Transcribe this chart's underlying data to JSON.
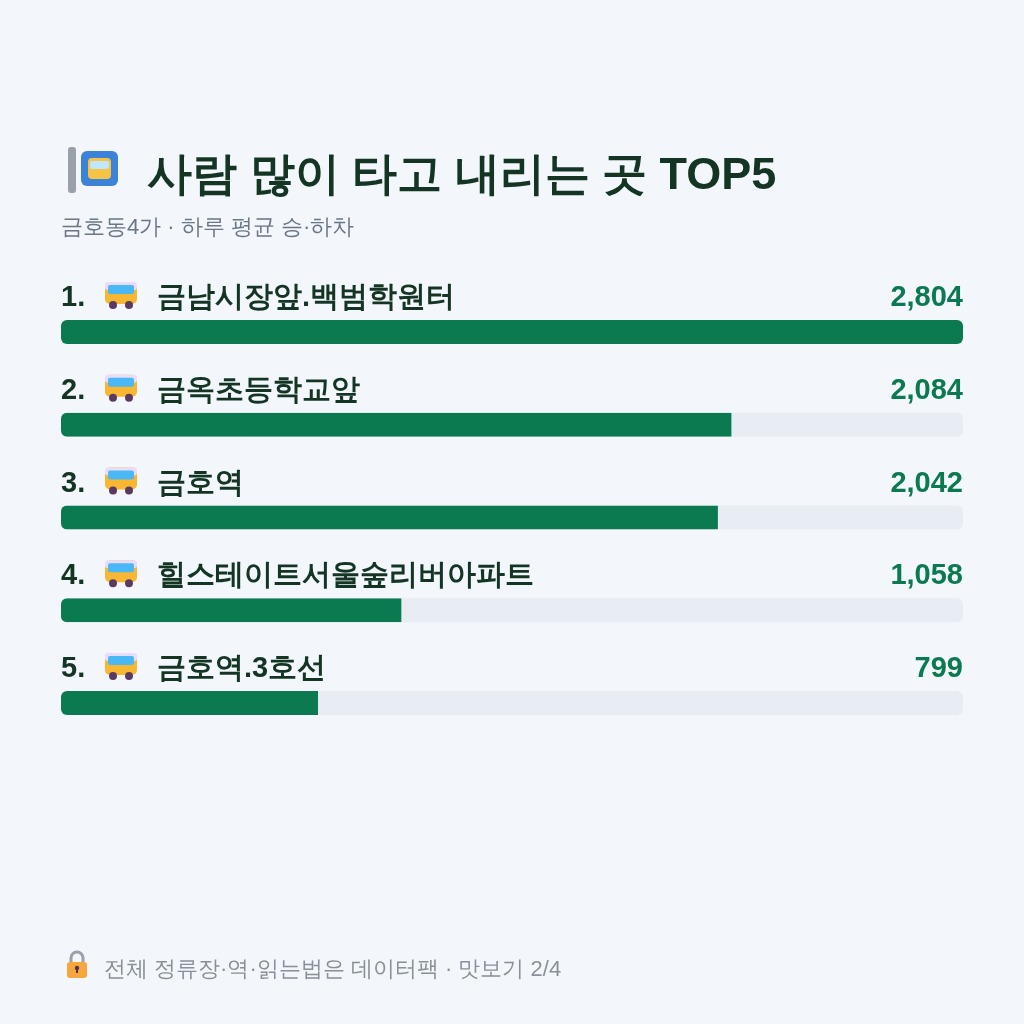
{
  "chart_data": {
    "type": "bar",
    "orientation": "horizontal",
    "title": "사람 많이 타고 내리는 곳 TOP5",
    "subtitle": "금호동4가 · 하루 평균 승·하차",
    "categories": [
      "1. 금남시장앞.백범학원터",
      "2. 금옥초등학교앞",
      "3. 금호역",
      "4. 힐스테이트서울숲리버아파트",
      "5. 금호역.3호선"
    ],
    "values": [
      2804,
      2084,
      2042,
      1058,
      799
    ],
    "color": "#0b7a50",
    "value_labels": [
      "2,804",
      "2,084",
      "2,042",
      "1,058",
      "799"
    ],
    "annotations": [
      "전체 정류장·역·읽는법은 데이터팩 · 맛보기 2/4"
    ]
  }
}
